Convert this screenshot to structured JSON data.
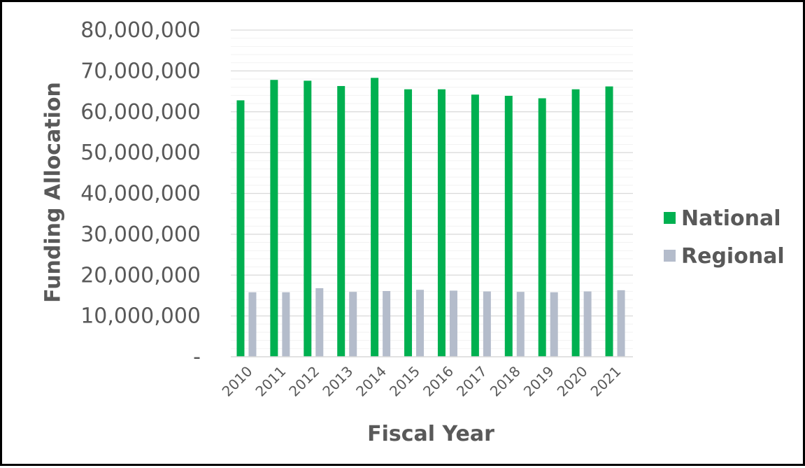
{
  "chart_data": {
    "type": "bar",
    "title": "",
    "xlabel": "Fiscal Year",
    "ylabel": "Funding Allocation",
    "ylim": [
      0,
      80000000
    ],
    "y_ticks": [
      {
        "value": 0,
        "label": "-"
      },
      {
        "value": 10000000,
        "label": "10,000,000"
      },
      {
        "value": 20000000,
        "label": "20,000,000"
      },
      {
        "value": 30000000,
        "label": "30,000,000"
      },
      {
        "value": 40000000,
        "label": "40,000,000"
      },
      {
        "value": 50000000,
        "label": "50,000,000"
      },
      {
        "value": 60000000,
        "label": "60,000,000"
      },
      {
        "value": 70000000,
        "label": "70,000,000"
      },
      {
        "value": 80000000,
        "label": "80,000,000"
      }
    ],
    "grid": true,
    "legend_position": "right",
    "categories": [
      "2010",
      "2011",
      "2012",
      "2013",
      "2014",
      "2015",
      "2016",
      "2017",
      "2018",
      "2019",
      "2020",
      "2021"
    ],
    "series": [
      {
        "name": "National",
        "color": "#00b050",
        "values": [
          62800000,
          67800000,
          67600000,
          66300000,
          68300000,
          65500000,
          65500000,
          64200000,
          63900000,
          63300000,
          65500000,
          66200000
        ]
      },
      {
        "name": "Regional",
        "color": "#b4bccb",
        "values": [
          15800000,
          15800000,
          16800000,
          15900000,
          16100000,
          16400000,
          16200000,
          16000000,
          15900000,
          15800000,
          16000000,
          16300000
        ]
      }
    ]
  }
}
